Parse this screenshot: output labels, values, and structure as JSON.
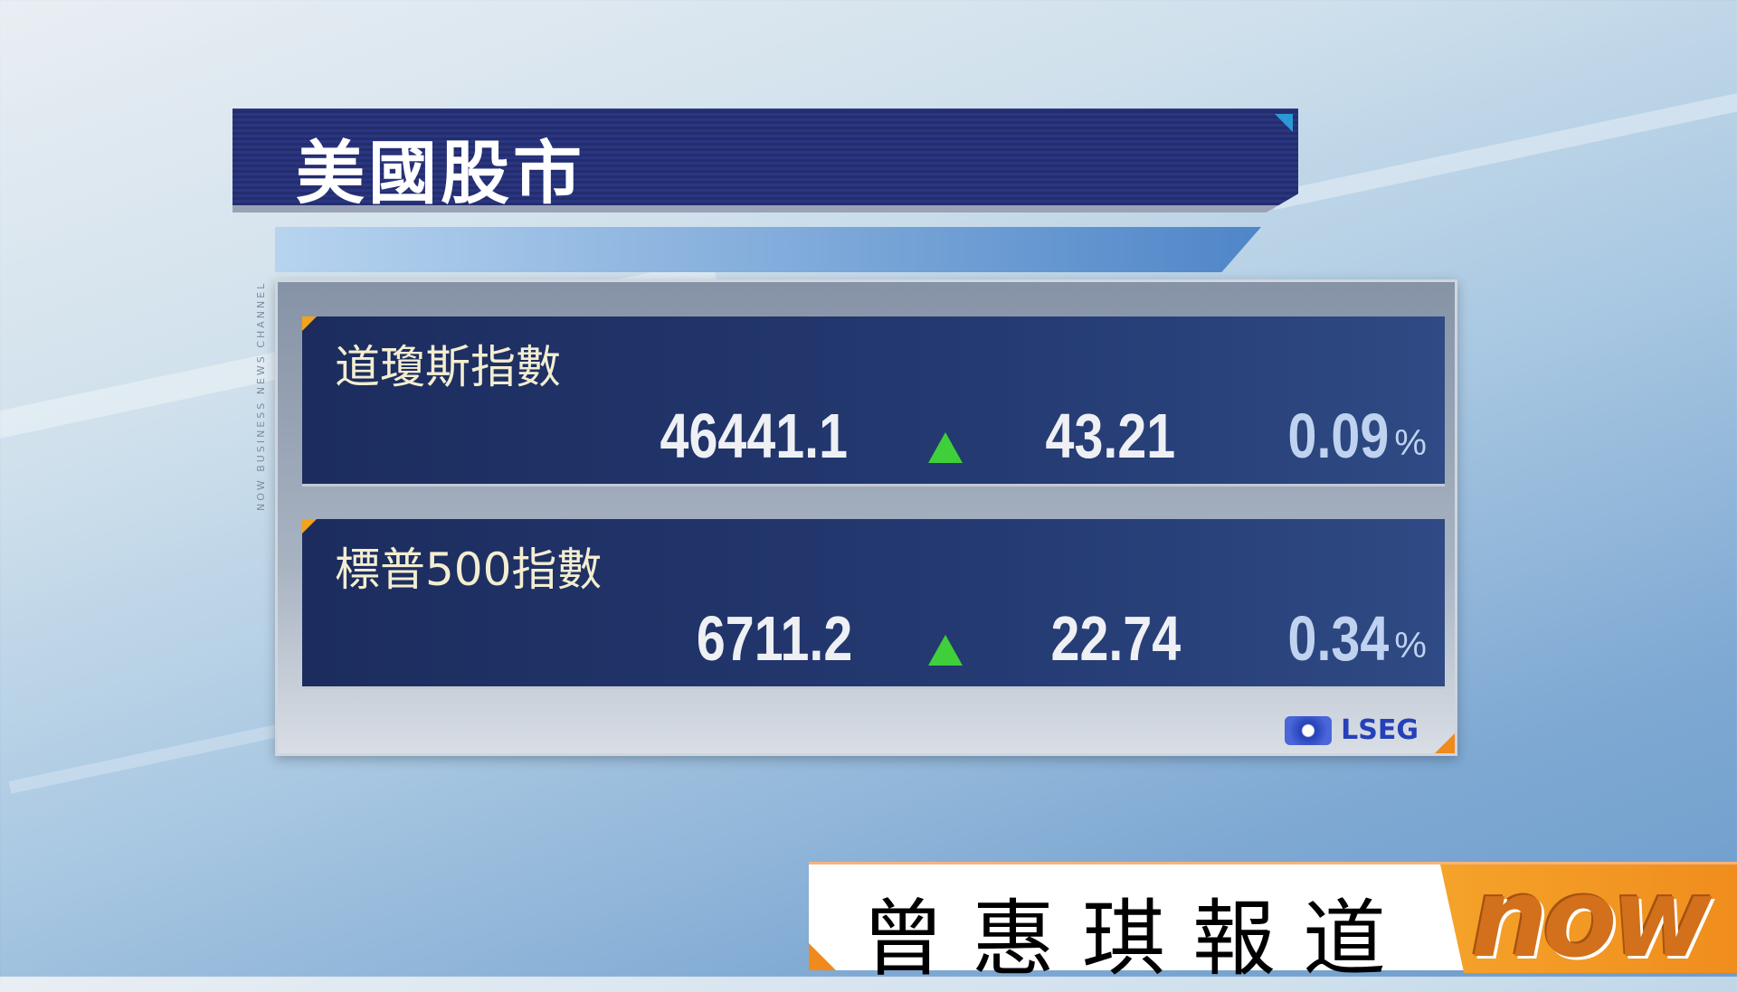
{
  "header": {
    "title": "美國股市",
    "side_label": "NOW BUSINESS NEWS CHANNEL"
  },
  "indices": [
    {
      "name": "道瓊斯指數",
      "value": "46441.1",
      "direction": "up",
      "change": "43.21",
      "percent": "0.09",
      "percent_sign": "%"
    },
    {
      "name": "標普500指數",
      "value": "6711.2",
      "direction": "up",
      "change": "22.74",
      "percent": "0.34",
      "percent_sign": "%"
    }
  ],
  "source": {
    "label": "LSEG"
  },
  "banner": {
    "reporter": "曾惠琪報道",
    "logo": "now"
  },
  "colors": {
    "title_bar": "#232d6e",
    "row_bg": "#1c2c5e",
    "up_arrow": "#3fcf3a",
    "accent_orange": "#f08a1c",
    "source_blue": "#2540b8"
  }
}
